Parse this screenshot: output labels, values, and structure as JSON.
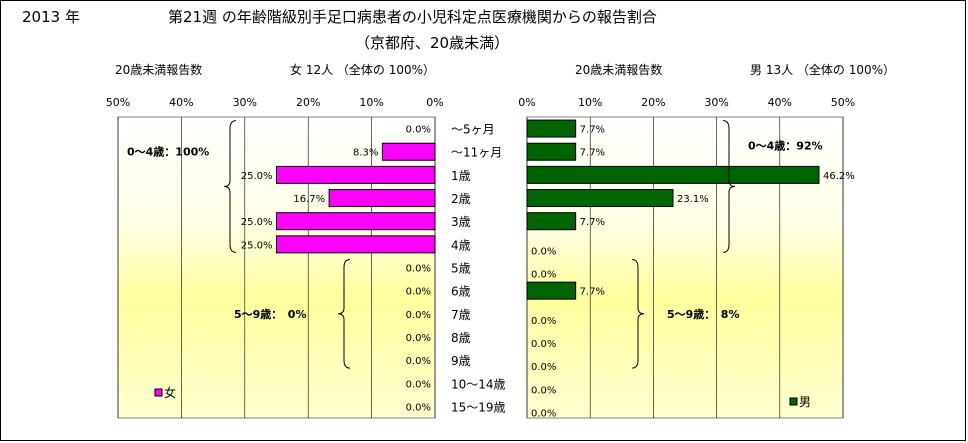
{
  "header": {
    "year": "2013 年",
    "title": "第21週 の年齢階級別手足口病患者の小児科定点医療機関からの報告割合",
    "subtitle": "（京都府、20歳未満）"
  },
  "female_panel": {
    "count_label": "20歳未満報告数",
    "total_label": "女 12人 （全体の 100%）",
    "legend": "女",
    "group_0_4": "0～4歳：100%",
    "group_5_9": "5～9歳：　0%"
  },
  "male_panel": {
    "count_label": "20歳未満報告数",
    "total_label": "男 13人 （全体の 100%）",
    "legend": "男",
    "group_0_4": "0～4歳：92%",
    "group_5_9": "5～9歳：　8%"
  },
  "chart_data": [
    {
      "type": "bar",
      "orientation": "horizontal",
      "x_direction": "reversed",
      "categories": [
        "～5ヶ月",
        "～11ヶ月",
        "1歳",
        "2歳",
        "3歳",
        "4歳",
        "5歳",
        "6歳",
        "7歳",
        "8歳",
        "9歳",
        "10～14歳",
        "15～19歳"
      ],
      "series": [
        {
          "name": "女",
          "values": [
            0.0,
            8.3,
            25.0,
            16.7,
            25.0,
            25.0,
            0.0,
            0.0,
            0.0,
            0.0,
            0.0,
            0.0,
            0.0
          ]
        }
      ],
      "data_labels": [
        "0.0%",
        "8.3%",
        "25.0%",
        "16.7%",
        "25.0%",
        "25.0%",
        "0.0%",
        "0.0%",
        "0.0%",
        "0.0%",
        "0.0%",
        "0.0%",
        "0.0%"
      ],
      "xlim": [
        0,
        50
      ],
      "xticks": [
        "50%",
        "40%",
        "30%",
        "20%",
        "10%",
        "0%"
      ],
      "color": "#ff00ff",
      "grid": true,
      "legend_position": "bottom-left"
    },
    {
      "type": "bar",
      "orientation": "horizontal",
      "categories": [
        "～5ヶ月",
        "～11ヶ月",
        "1歳",
        "2歳",
        "3歳",
        "4歳",
        "5歳",
        "6歳",
        "7歳",
        "8歳",
        "9歳",
        "10～14歳",
        "15～19歳"
      ],
      "series": [
        {
          "name": "男",
          "values": [
            7.7,
            7.7,
            46.2,
            23.1,
            7.7,
            0.0,
            0.0,
            7.7,
            0.0,
            0.0,
            0.0,
            0.0,
            0.0
          ]
        }
      ],
      "data_labels": [
        "7.7%",
        "7.7%",
        "46.2%",
        "23.1%",
        "7.7%",
        "0.0%",
        "0.0%",
        "7.7%",
        "0.0%",
        "0.0%",
        "0.0%",
        "0.0%",
        "0.0%"
      ],
      "xlim": [
        0,
        50
      ],
      "xticks": [
        "0%",
        "10%",
        "20%",
        "30%",
        "40%",
        "50%"
      ],
      "color": "#006400",
      "grid": true,
      "legend_position": "bottom-right"
    }
  ]
}
